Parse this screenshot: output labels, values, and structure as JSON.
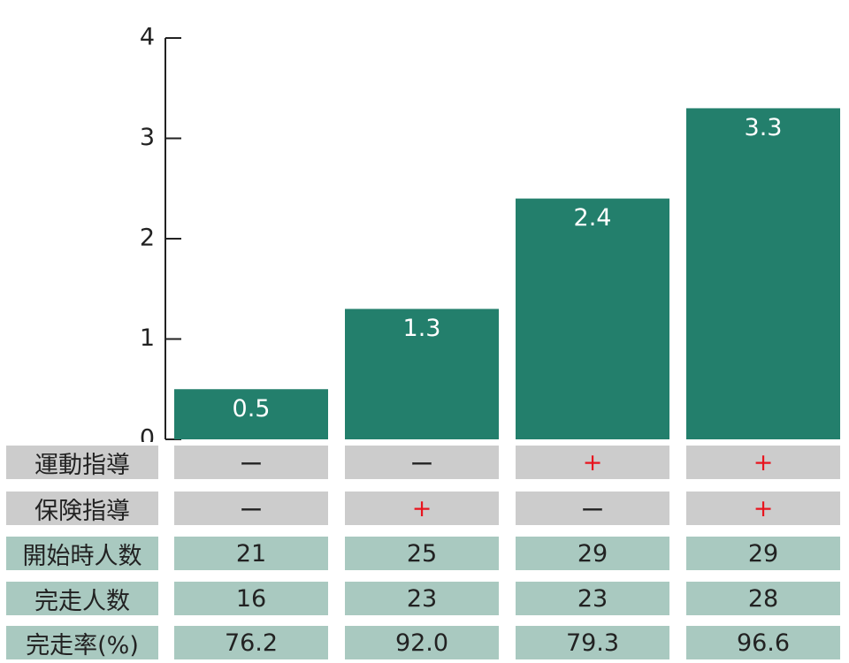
{
  "chart_data": {
    "type": "bar",
    "values": [
      0.5,
      1.3,
      2.4,
      3.3
    ],
    "color": "#237f6c",
    "ylim": [
      0,
      4
    ],
    "yticks": [
      0,
      1,
      2,
      3,
      4
    ]
  },
  "table": {
    "rows": [
      {
        "label": "運動指導",
        "cells": [
          "ー",
          "ー",
          "+",
          "+"
        ]
      },
      {
        "label": "保険指導",
        "cells": [
          "ー",
          "+",
          "ー",
          "+"
        ]
      },
      {
        "label": "開始時人数",
        "cells": [
          "21",
          "25",
          "29",
          "29"
        ]
      },
      {
        "label": "完走人数",
        "cells": [
          "16",
          "23",
          "23",
          "28"
        ]
      },
      {
        "label": "完走率(%)",
        "cells": [
          "76.2",
          "92.0",
          "79.3",
          "96.6"
        ]
      }
    ]
  }
}
